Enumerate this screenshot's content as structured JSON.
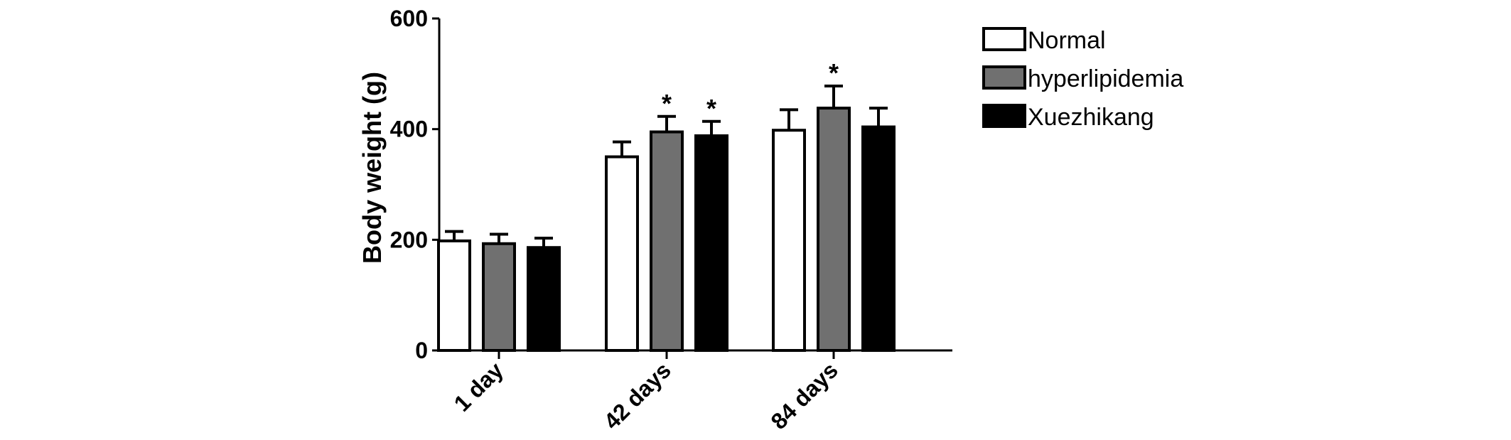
{
  "chart_data": {
    "type": "bar",
    "ylabel": "Body weight (g)",
    "ylim": [
      0,
      600
    ],
    "yticks": [
      0,
      200,
      400,
      600
    ],
    "categories": [
      "1 day",
      "42 days",
      "84 days"
    ],
    "series": [
      {
        "name": "Normal",
        "color": "#ffffff",
        "values": [
          198,
          350,
          398
        ],
        "errors": [
          17,
          27,
          37
        ],
        "significance": [
          "",
          "",
          ""
        ]
      },
      {
        "name": "hyperlipidemia",
        "color": "#707070",
        "values": [
          193,
          395,
          438
        ],
        "errors": [
          17,
          28,
          40
        ],
        "significance": [
          "",
          "*",
          "*"
        ]
      },
      {
        "name": "Xuezhikang",
        "color": "#000000",
        "values": [
          186,
          388,
          404
        ],
        "errors": [
          17,
          26,
          34
        ],
        "significance": [
          "",
          "*",
          ""
        ]
      }
    ],
    "legend_position": "top-right",
    "grid": false
  }
}
